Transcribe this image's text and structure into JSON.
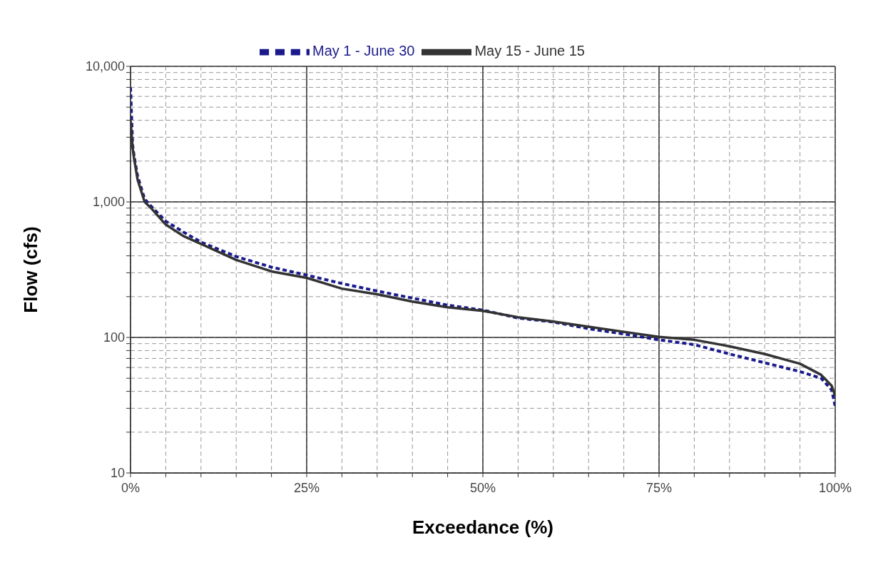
{
  "chart_data": {
    "type": "line",
    "xlabel": "Exceedance (%)",
    "ylabel": "Flow (cfs)",
    "log": "y",
    "grid": true,
    "legend": "top",
    "marker": "none",
    "xlim": [
      0,
      100
    ],
    "ylim": [
      10,
      10000
    ],
    "xticks": [
      {
        "value": 0,
        "label": "0%"
      },
      {
        "value": 5,
        "label": null
      },
      {
        "value": 10,
        "label": null
      },
      {
        "value": 15,
        "label": null
      },
      {
        "value": 20,
        "label": null
      },
      {
        "value": 25,
        "label": "25%"
      },
      {
        "value": 30,
        "label": null
      },
      {
        "value": 35,
        "label": null
      },
      {
        "value": 40,
        "label": null
      },
      {
        "value": 45,
        "label": null
      },
      {
        "value": 50,
        "label": "50%"
      },
      {
        "value": 55,
        "label": null
      },
      {
        "value": 60,
        "label": null
      },
      {
        "value": 65,
        "label": null
      },
      {
        "value": 70,
        "label": null
      },
      {
        "value": 75,
        "label": "75%"
      },
      {
        "value": 80,
        "label": null
      },
      {
        "value": 85,
        "label": null
      },
      {
        "value": 90,
        "label": null
      },
      {
        "value": 95,
        "label": null
      },
      {
        "value": 100,
        "label": "100%"
      }
    ],
    "yticks": [
      10,
      {
        "value": 20,
        "label": null
      },
      {
        "value": 30,
        "label": null
      },
      {
        "value": 40,
        "label": null
      },
      {
        "value": 50,
        "label": null
      },
      {
        "value": 60,
        "label": null
      },
      {
        "value": 70,
        "label": null
      },
      {
        "value": 80,
        "label": null
      },
      {
        "value": 90,
        "label": null
      },
      100,
      {
        "value": 200,
        "label": null
      },
      {
        "value": 300,
        "label": null
      },
      {
        "value": 400,
        "label": null
      },
      {
        "value": 500,
        "label": null
      },
      {
        "value": 600,
        "label": null
      },
      {
        "value": 700,
        "label": null
      },
      {
        "value": 800,
        "label": null
      },
      {
        "value": 900,
        "label": null
      },
      {
        "value": 1000,
        "label": "1,000"
      },
      {
        "value": 2000,
        "label": null
      },
      {
        "value": 3000,
        "label": null
      },
      {
        "value": 4000,
        "label": null
      },
      {
        "value": 5000,
        "label": null
      },
      {
        "value": 6000,
        "label": null
      },
      {
        "value": 7000,
        "label": null
      },
      {
        "value": 8000,
        "label": null
      },
      {
        "value": 9000,
        "label": null
      },
      {
        "value": 10000,
        "label": "10,000"
      }
    ],
    "series": [
      {
        "name": "May 1 - June 30",
        "color": "#1a1a8c",
        "line_style": "dashed",
        "x": [
          0,
          0.3,
          0.5,
          1,
          2,
          3,
          5,
          7.5,
          10,
          15,
          20,
          25,
          30,
          35,
          40,
          45,
          50,
          55,
          60,
          65,
          70,
          75,
          80,
          85,
          90,
          95,
          98,
          99.5,
          100
        ],
        "values": [
          7000,
          2600,
          2200,
          1550,
          1050,
          920,
          720,
          600,
          505,
          395,
          330,
          288,
          250,
          220,
          195,
          173,
          159,
          139,
          130,
          116,
          106,
          96,
          88.5,
          75.5,
          65,
          56,
          50,
          41,
          31
        ]
      },
      {
        "name": "May 15 - June 15",
        "color": "#333333",
        "line_style": "solid",
        "x": [
          0,
          0.3,
          0.5,
          1,
          2,
          3,
          5,
          7.5,
          10,
          15,
          20,
          25,
          30,
          35,
          40,
          45,
          50,
          55,
          60,
          65,
          70,
          75,
          80,
          85,
          90,
          95,
          98,
          99.5,
          100
        ],
        "values": [
          4000,
          2500,
          2100,
          1460,
          1000,
          890,
          680,
          560,
          490,
          373,
          307,
          275,
          229,
          208,
          184,
          167,
          157,
          141,
          131,
          120,
          110,
          101,
          96,
          86,
          75.5,
          64,
          53,
          44,
          37
        ]
      }
    ]
  }
}
